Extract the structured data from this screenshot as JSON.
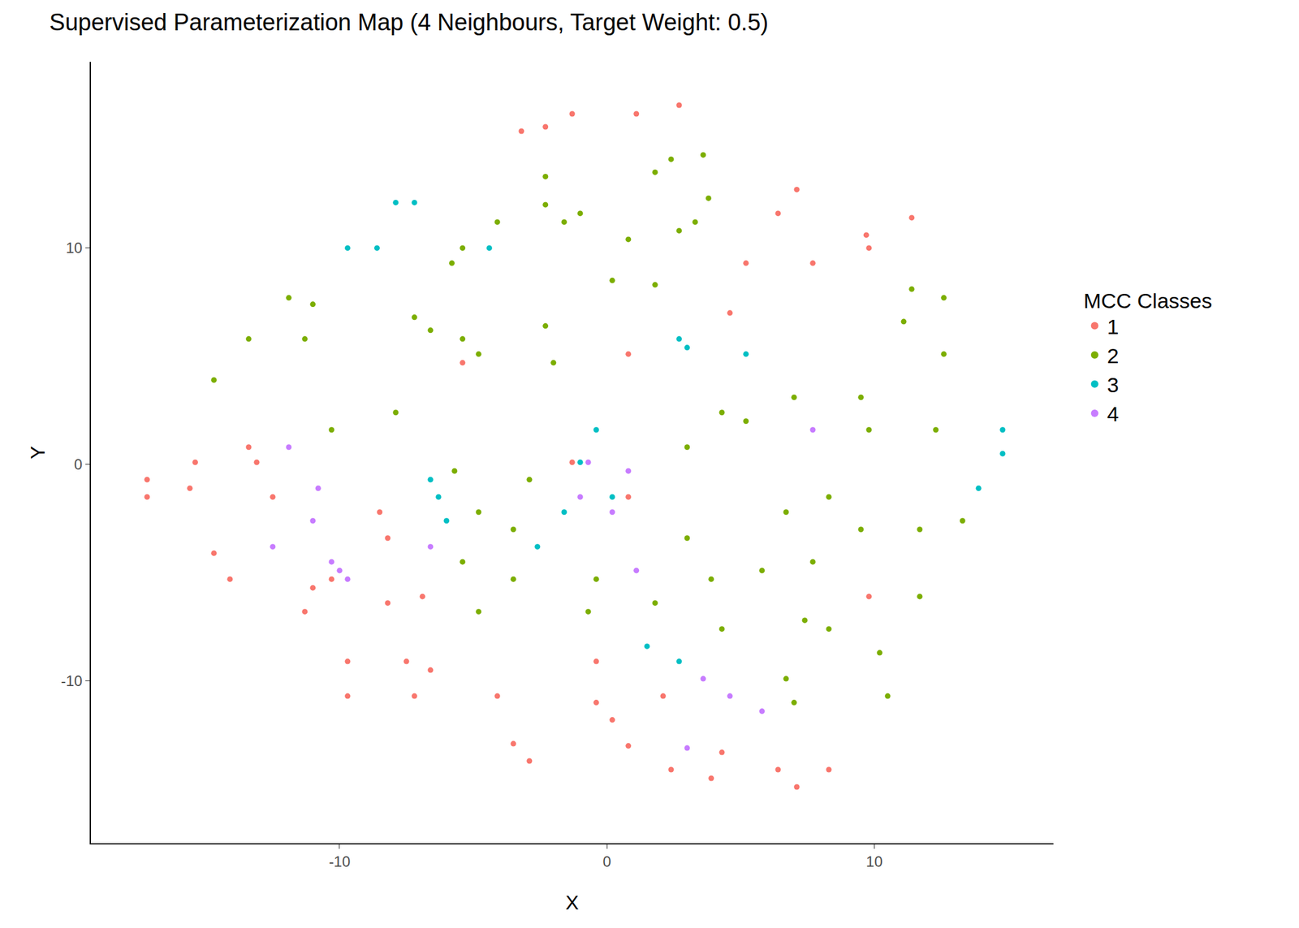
{
  "chart_data": {
    "type": "scatter",
    "title": "Supervised Parameterization Map (4 Neighbours, Target Weight: 0.5)",
    "x_label": "X",
    "y_label": "Y",
    "legend_title": "MCC Classes",
    "legend": "right",
    "grid": false,
    "xlim": [
      -19.3,
      16.7
    ],
    "ylim": [
      -17.5,
      18.6
    ],
    "xticks": [
      -10,
      0,
      10
    ],
    "yticks": [
      -10,
      0,
      10
    ],
    "series": [
      {
        "name": "1",
        "color": "#F8766D",
        "x": [
          -17.2,
          -15.6,
          -17.2,
          -15.4,
          -13.1,
          -12.5,
          -13.4,
          -14.7,
          -14.1,
          -11.0,
          -11.3,
          -10.3,
          -8.5,
          -8.2,
          -8.2,
          -6.9,
          -9.7,
          -9.7,
          -7.5,
          -6.6,
          -7.2,
          -4.1,
          -3.5,
          -2.9,
          -0.4,
          0.2,
          0.8,
          2.1,
          2.4,
          3.9,
          4.3,
          6.4,
          7.1,
          8.3,
          -2.3,
          -1.3,
          -3.2,
          1.1,
          2.7,
          7.1,
          7.7,
          9.7,
          9.8,
          5.2,
          4.6,
          6.4,
          11.4,
          0.8,
          -1.3,
          0.8,
          -0.4,
          -5.4,
          9.8
        ],
        "y": [
          -0.7,
          -1.1,
          -1.5,
          0.1,
          0.1,
          -1.5,
          0.8,
          -4.1,
          -5.3,
          -5.7,
          -6.8,
          -5.3,
          -2.2,
          -3.4,
          -6.4,
          -6.1,
          -9.1,
          -10.7,
          -9.1,
          -9.5,
          -10.7,
          -10.7,
          -12.9,
          -13.7,
          -11.0,
          -11.8,
          -13.0,
          -10.7,
          -14.1,
          -14.5,
          -13.3,
          -14.1,
          -14.9,
          -14.1,
          15.6,
          16.2,
          15.4,
          16.2,
          16.6,
          12.7,
          9.3,
          10.6,
          10.0,
          9.3,
          7.0,
          11.6,
          11.4,
          5.1,
          0.1,
          -1.5,
          -9.1,
          4.7,
          -6.1
        ]
      },
      {
        "name": "2",
        "color": "#7CAE00",
        "x": [
          2.4,
          3.6,
          1.8,
          -1.6,
          -1.0,
          -2.3,
          -2.3,
          -5.8,
          -5.4,
          -4.1,
          0.8,
          2.7,
          3.3,
          3.8,
          0.2,
          1.8,
          -6.6,
          -7.2,
          -5.4,
          -4.8,
          -2.3,
          -2.0,
          -11.0,
          -11.9,
          -13.4,
          -14.7,
          -11.3,
          11.4,
          12.6,
          11.1,
          12.6,
          9.5,
          9.8,
          12.3,
          4.3,
          5.2,
          3.0,
          7.0,
          -7.9,
          -10.3,
          -5.7,
          -4.8,
          -2.9,
          -3.5,
          -5.4,
          -3.5,
          -4.8,
          -0.4,
          -0.7,
          1.8,
          3.0,
          3.9,
          5.8,
          7.7,
          6.7,
          8.3,
          9.5,
          11.7,
          11.7,
          7.4,
          8.3,
          10.2,
          10.5,
          6.7,
          7.0,
          4.3,
          13.3
        ],
        "y": [
          14.1,
          14.3,
          13.5,
          11.2,
          11.6,
          12.0,
          13.3,
          9.3,
          10.0,
          11.2,
          10.4,
          10.8,
          11.2,
          12.3,
          8.5,
          8.3,
          6.2,
          6.8,
          5.8,
          5.1,
          6.4,
          4.7,
          7.4,
          7.7,
          5.8,
          3.9,
          5.8,
          8.1,
          7.7,
          6.6,
          5.1,
          3.1,
          1.6,
          1.6,
          2.4,
          2.0,
          0.8,
          3.1,
          2.4,
          1.6,
          -0.3,
          -2.2,
          -0.7,
          -3.0,
          -4.5,
          -5.3,
          -6.8,
          -5.3,
          -6.8,
          -6.4,
          -3.4,
          -5.3,
          -4.9,
          -4.5,
          -2.2,
          -1.5,
          -3.0,
          -3.0,
          -6.1,
          -7.2,
          -7.6,
          -8.7,
          -10.7,
          -9.9,
          -11.0,
          -7.6,
          -2.6
        ]
      },
      {
        "name": "3",
        "color": "#00BFC4",
        "x": [
          -7.9,
          -7.2,
          -8.6,
          -9.7,
          2.7,
          3.0,
          14.8,
          14.8,
          13.9,
          -6.3,
          -6.0,
          -6.6,
          -1.0,
          0.2,
          -1.6,
          -0.4,
          1.5,
          2.7,
          -2.6,
          5.2,
          -4.4
        ],
        "y": [
          12.1,
          12.1,
          10.0,
          10.0,
          5.8,
          5.4,
          1.6,
          0.5,
          -1.1,
          -1.5,
          -2.6,
          -0.7,
          0.1,
          -1.5,
          -2.2,
          1.6,
          -8.4,
          -9.1,
          -3.8,
          5.1,
          10.0
        ]
      },
      {
        "name": "4",
        "color": "#C77CFF",
        "x": [
          -10.0,
          -10.3,
          -9.7,
          -11.0,
          -10.8,
          -11.9,
          -12.5,
          -6.6,
          3.6,
          4.6,
          5.8,
          3.0,
          -0.7,
          0.8,
          0.2,
          -1.0,
          1.1,
          7.7
        ],
        "y": [
          -4.9,
          -4.5,
          -5.3,
          -2.6,
          -1.1,
          0.8,
          -3.8,
          -3.8,
          -9.9,
          -10.7,
          -11.4,
          -13.1,
          0.1,
          -0.3,
          -2.2,
          -1.5,
          -4.9,
          1.6
        ]
      }
    ]
  }
}
